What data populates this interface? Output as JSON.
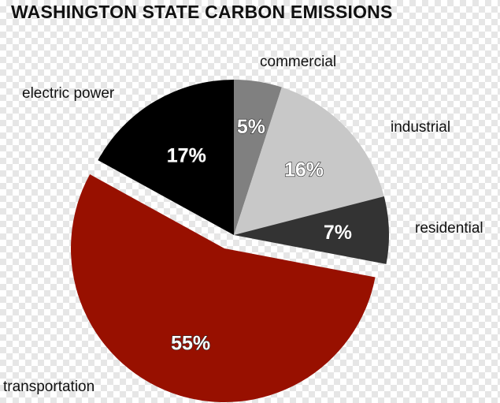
{
  "chart_data": {
    "type": "pie",
    "title": "WASHINGTON STATE CARBON EMISSIONS",
    "slices": [
      {
        "name": "commercial",
        "value": 5,
        "label": "5%",
        "color": "#808080"
      },
      {
        "name": "industrial",
        "value": 16,
        "label": "16%",
        "color": "#c8c8c8"
      },
      {
        "name": "residential",
        "value": 7,
        "label": "7%",
        "color": "#333333"
      },
      {
        "name": "transportation",
        "value": 55,
        "label": "55%",
        "color": "#981000",
        "exploded": true
      },
      {
        "name": "electric power",
        "value": 17,
        "label": "17%",
        "color": "#000000"
      }
    ],
    "start_angle": "12 o'clock",
    "direction": "clockwise",
    "legend": "none"
  }
}
